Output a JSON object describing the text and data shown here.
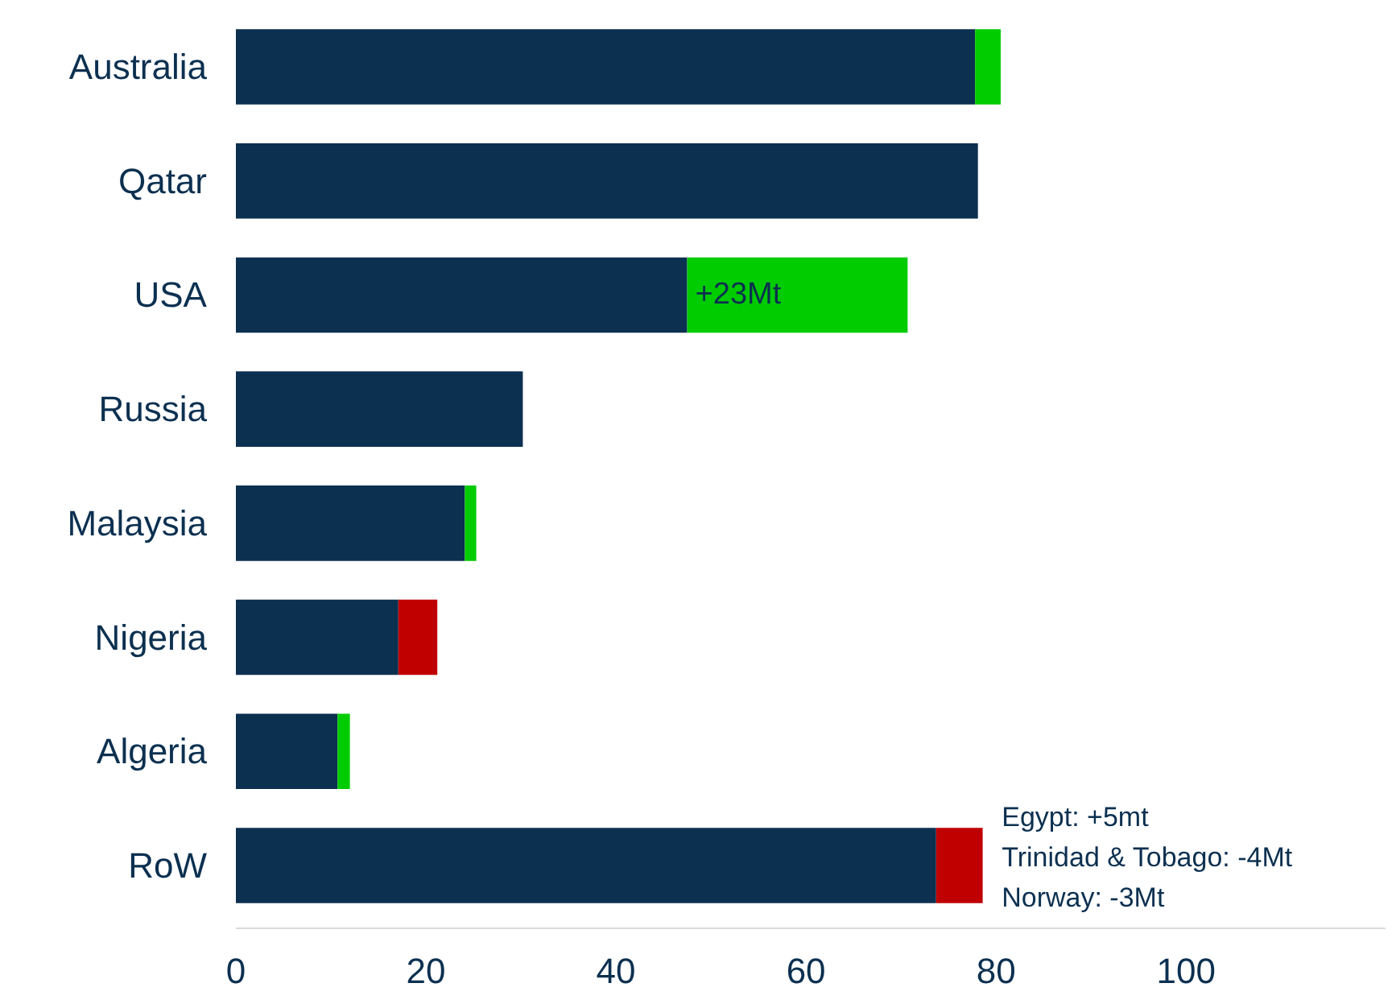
{
  "chart_data": {
    "type": "bar",
    "orientation": "horizontal",
    "stacked": true,
    "categories": [
      "Australia",
      "Qatar",
      "USA",
      "Russia",
      "Malaysia",
      "Nigeria",
      "Algeria",
      "RoW"
    ],
    "series": [
      {
        "color": "#0c3050",
        "values": [
          77.8,
          78.1,
          47.5,
          30.2,
          24.1,
          17.1,
          10.7,
          73.7
        ]
      },
      {
        "color": "#00cc00",
        "values": [
          2.7,
          null,
          23.2,
          null,
          1.2,
          null,
          1.3,
          null
        ]
      },
      {
        "color": "#c00000",
        "values": [
          null,
          null,
          null,
          null,
          null,
          4.1,
          null,
          4.9
        ]
      }
    ],
    "xlim": [
      0,
      121
    ],
    "xticks": [
      0,
      20,
      40,
      60,
      80,
      100
    ],
    "grid": false,
    "annotations": [
      {
        "text": "+23Mt",
        "x": 47.5,
        "y": "USA"
      },
      "Egypt: +5mt",
      "Trinidad & Tobago: -4Mt",
      "Norway: -3Mt"
    ]
  }
}
